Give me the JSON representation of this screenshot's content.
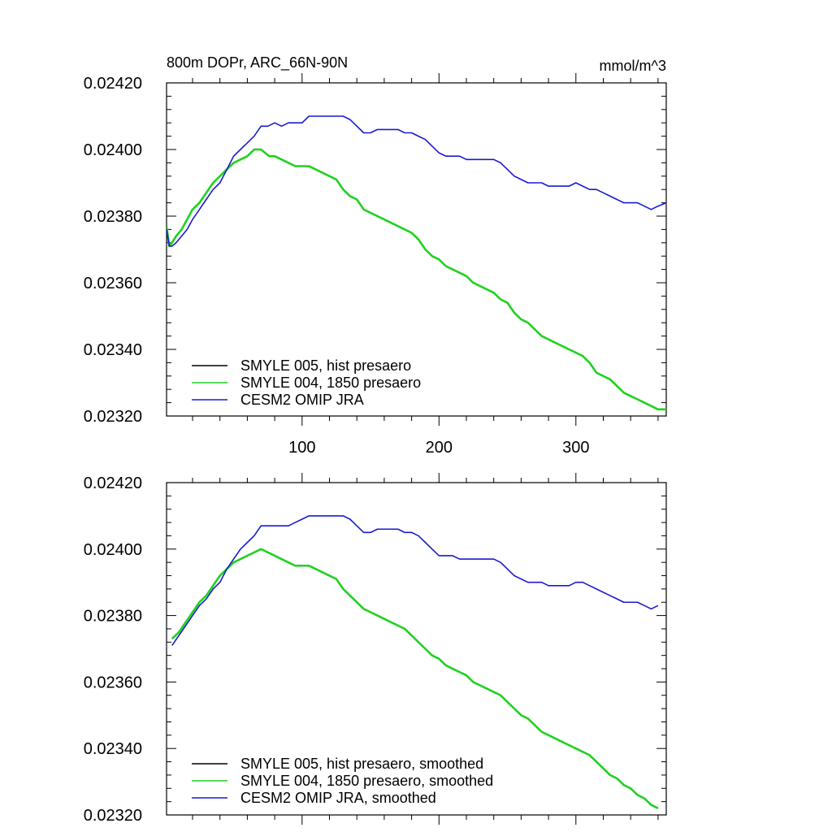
{
  "figure": {
    "title_left": "800m DOPr, ARC_66N-90N",
    "title_right": "mmol/m^3"
  },
  "colors": {
    "smyle005": "#000000",
    "smyle004": "#1fd21f",
    "omip": "#1a1ad2",
    "axis": "#000000"
  },
  "chart_data": [
    {
      "type": "line",
      "title": "800m DOPr, ARC_66N-90N",
      "units": "mmol/m^3",
      "xlim": [
        1,
        366
      ],
      "ylim": [
        0.0232,
        0.0242
      ],
      "x_ticks": [
        100,
        200,
        300
      ],
      "x_tick_labels": [
        "100",
        "200",
        "300"
      ],
      "y_ticks": [
        0.0232,
        0.0234,
        0.0236,
        0.0238,
        0.024,
        0.0242
      ],
      "y_tick_labels": [
        "0.02320",
        "0.02340",
        "0.02360",
        "0.02380",
        "0.02400",
        "0.02420"
      ],
      "legend_position": "bottom-left",
      "series": [
        {
          "name": "SMYLE 005, hist presaero",
          "color_key": "smyle004",
          "x": [
            1,
            3,
            5,
            8,
            12,
            16,
            20,
            25,
            30,
            35,
            40,
            45,
            50,
            55,
            60,
            65,
            70,
            73,
            76,
            80,
            85,
            90,
            95,
            100,
            105,
            110,
            115,
            120,
            125,
            130,
            135,
            140,
            145,
            150,
            155,
            160,
            165,
            170,
            175,
            180,
            185,
            190,
            195,
            200,
            205,
            210,
            215,
            220,
            225,
            230,
            235,
            240,
            245,
            250,
            255,
            260,
            265,
            270,
            275,
            280,
            285,
            290,
            295,
            300,
            305,
            310,
            315,
            320,
            325,
            330,
            335,
            340,
            345,
            350,
            355,
            360,
            366
          ],
          "values": [
            0.02377,
            0.02371,
            0.02372,
            0.02374,
            0.02376,
            0.02379,
            0.02382,
            0.02384,
            0.02387,
            0.0239,
            0.02392,
            0.02394,
            0.02396,
            0.02397,
            0.02398,
            0.024,
            0.024,
            0.02399,
            0.02398,
            0.02398,
            0.02397,
            0.02396,
            0.02395,
            0.02395,
            0.02395,
            0.02394,
            0.02393,
            0.02392,
            0.02391,
            0.02388,
            0.02386,
            0.02385,
            0.02382,
            0.02381,
            0.0238,
            0.02379,
            0.02378,
            0.02377,
            0.02376,
            0.02375,
            0.02373,
            0.0237,
            0.02368,
            0.02367,
            0.02365,
            0.02364,
            0.02363,
            0.02362,
            0.0236,
            0.02359,
            0.02358,
            0.02357,
            0.02355,
            0.02354,
            0.02351,
            0.02349,
            0.02348,
            0.02346,
            0.02344,
            0.02343,
            0.02342,
            0.02341,
            0.0234,
            0.02339,
            0.02338,
            0.02336,
            0.02333,
            0.02332,
            0.02331,
            0.02329,
            0.02327,
            0.02326,
            0.02325,
            0.02324,
            0.02323,
            0.02322,
            0.02322
          ]
        },
        {
          "name": "SMYLE 004, 1850 presaero",
          "color_key": "smyle004",
          "x": [
            1,
            3,
            5,
            8,
            12,
            16,
            20,
            25,
            30,
            35,
            40,
            45,
            50,
            55,
            60,
            65,
            70,
            73,
            76,
            80,
            85,
            90,
            95,
            100,
            105,
            110,
            115,
            120,
            125,
            130,
            135,
            140,
            145,
            150,
            155,
            160,
            165,
            170,
            175,
            180,
            185,
            190,
            195,
            200,
            205,
            210,
            215,
            220,
            225,
            230,
            235,
            240,
            245,
            250,
            255,
            260,
            265,
            270,
            275,
            280,
            285,
            290,
            295,
            300,
            305,
            310,
            315,
            320,
            325,
            330,
            335,
            340,
            345,
            350,
            355,
            360,
            366
          ],
          "values": [
            0.02377,
            0.02371,
            0.02372,
            0.02374,
            0.02376,
            0.02379,
            0.02382,
            0.02384,
            0.02387,
            0.0239,
            0.02392,
            0.02394,
            0.02396,
            0.02397,
            0.02398,
            0.024,
            0.024,
            0.02399,
            0.02398,
            0.02398,
            0.02397,
            0.02396,
            0.02395,
            0.02395,
            0.02395,
            0.02394,
            0.02393,
            0.02392,
            0.02391,
            0.02388,
            0.02386,
            0.02385,
            0.02382,
            0.02381,
            0.0238,
            0.02379,
            0.02378,
            0.02377,
            0.02376,
            0.02375,
            0.02373,
            0.0237,
            0.02368,
            0.02367,
            0.02365,
            0.02364,
            0.02363,
            0.02362,
            0.0236,
            0.02359,
            0.02358,
            0.02357,
            0.02355,
            0.02354,
            0.02351,
            0.02349,
            0.02348,
            0.02346,
            0.02344,
            0.02343,
            0.02342,
            0.02341,
            0.0234,
            0.02339,
            0.02338,
            0.02336,
            0.02333,
            0.02332,
            0.02331,
            0.02329,
            0.02327,
            0.02326,
            0.02325,
            0.02324,
            0.02323,
            0.02322,
            0.02322
          ]
        },
        {
          "name": "CESM2 OMIP JRA",
          "color_key": "omip",
          "x": [
            1,
            3,
            5,
            8,
            12,
            16,
            20,
            25,
            30,
            35,
            40,
            45,
            50,
            55,
            60,
            65,
            70,
            75,
            80,
            85,
            90,
            95,
            100,
            105,
            110,
            115,
            120,
            125,
            130,
            135,
            140,
            145,
            150,
            155,
            160,
            165,
            170,
            175,
            180,
            185,
            190,
            195,
            200,
            205,
            210,
            215,
            220,
            225,
            230,
            235,
            240,
            245,
            250,
            255,
            260,
            265,
            270,
            275,
            280,
            285,
            290,
            295,
            300,
            305,
            310,
            315,
            320,
            325,
            330,
            335,
            340,
            345,
            350,
            355,
            360,
            366
          ],
          "values": [
            0.02376,
            0.02371,
            0.02371,
            0.02372,
            0.02374,
            0.02376,
            0.02379,
            0.02382,
            0.02385,
            0.02388,
            0.0239,
            0.02394,
            0.02398,
            0.024,
            0.02402,
            0.02404,
            0.02407,
            0.02407,
            0.02408,
            0.02407,
            0.02408,
            0.02408,
            0.02408,
            0.0241,
            0.0241,
            0.0241,
            0.0241,
            0.0241,
            0.0241,
            0.02409,
            0.02407,
            0.02405,
            0.02405,
            0.02406,
            0.02406,
            0.02406,
            0.02406,
            0.02405,
            0.02405,
            0.02404,
            0.02403,
            0.02401,
            0.02399,
            0.02398,
            0.02398,
            0.02398,
            0.02397,
            0.02397,
            0.02397,
            0.02397,
            0.02397,
            0.02396,
            0.02394,
            0.02392,
            0.02391,
            0.0239,
            0.0239,
            0.0239,
            0.02389,
            0.02389,
            0.02389,
            0.02389,
            0.0239,
            0.02389,
            0.02388,
            0.02388,
            0.02387,
            0.02386,
            0.02385,
            0.02384,
            0.02384,
            0.02384,
            0.02383,
            0.02382,
            0.02383,
            0.02384
          ]
        }
      ]
    },
    {
      "type": "line",
      "xlim": [
        1,
        366
      ],
      "ylim": [
        0.0232,
        0.0242
      ],
      "x_ticks": [
        100,
        200,
        300
      ],
      "x_tick_labels": [],
      "y_ticks": [
        0.0232,
        0.0234,
        0.0236,
        0.0238,
        0.024,
        0.0242
      ],
      "y_tick_labels": [
        "0.02320",
        "0.02340",
        "0.02360",
        "0.02380",
        "0.02400",
        "0.02420"
      ],
      "legend_position": "bottom-left",
      "series": [
        {
          "name": "SMYLE 005, hist presaero, smoothed",
          "color_key": "smyle004",
          "x": [
            5,
            10,
            15,
            20,
            25,
            30,
            35,
            40,
            45,
            50,
            55,
            60,
            65,
            70,
            75,
            80,
            85,
            90,
            95,
            100,
            105,
            110,
            115,
            120,
            125,
            130,
            135,
            140,
            145,
            150,
            155,
            160,
            165,
            170,
            175,
            180,
            185,
            190,
            195,
            200,
            205,
            210,
            215,
            220,
            225,
            230,
            235,
            240,
            245,
            250,
            255,
            260,
            265,
            270,
            275,
            280,
            285,
            290,
            295,
            300,
            305,
            310,
            315,
            320,
            325,
            330,
            335,
            340,
            345,
            350,
            355,
            360
          ],
          "values": [
            0.02373,
            0.02375,
            0.02378,
            0.02381,
            0.02384,
            0.02386,
            0.02389,
            0.02392,
            0.02394,
            0.02396,
            0.02397,
            0.02398,
            0.02399,
            0.024,
            0.02399,
            0.02398,
            0.02397,
            0.02396,
            0.02395,
            0.02395,
            0.02395,
            0.02394,
            0.02393,
            0.02392,
            0.02391,
            0.02388,
            0.02386,
            0.02384,
            0.02382,
            0.02381,
            0.0238,
            0.02379,
            0.02378,
            0.02377,
            0.02376,
            0.02374,
            0.02372,
            0.0237,
            0.02368,
            0.02367,
            0.02365,
            0.02364,
            0.02363,
            0.02362,
            0.0236,
            0.02359,
            0.02358,
            0.02357,
            0.02356,
            0.02354,
            0.02352,
            0.0235,
            0.02349,
            0.02347,
            0.02345,
            0.02344,
            0.02343,
            0.02342,
            0.02341,
            0.0234,
            0.02339,
            0.02338,
            0.02336,
            0.02334,
            0.02332,
            0.02331,
            0.02329,
            0.02328,
            0.02326,
            0.02325,
            0.02323,
            0.02322
          ]
        },
        {
          "name": "SMYLE 004, 1850 presaero, smoothed",
          "color_key": "smyle004",
          "x": [
            5,
            10,
            15,
            20,
            25,
            30,
            35,
            40,
            45,
            50,
            55,
            60,
            65,
            70,
            75,
            80,
            85,
            90,
            95,
            100,
            105,
            110,
            115,
            120,
            125,
            130,
            135,
            140,
            145,
            150,
            155,
            160,
            165,
            170,
            175,
            180,
            185,
            190,
            195,
            200,
            205,
            210,
            215,
            220,
            225,
            230,
            235,
            240,
            245,
            250,
            255,
            260,
            265,
            270,
            275,
            280,
            285,
            290,
            295,
            300,
            305,
            310,
            315,
            320,
            325,
            330,
            335,
            340,
            345,
            350,
            355,
            360
          ],
          "values": [
            0.02373,
            0.02375,
            0.02378,
            0.02381,
            0.02384,
            0.02386,
            0.02389,
            0.02392,
            0.02394,
            0.02396,
            0.02397,
            0.02398,
            0.02399,
            0.024,
            0.02399,
            0.02398,
            0.02397,
            0.02396,
            0.02395,
            0.02395,
            0.02395,
            0.02394,
            0.02393,
            0.02392,
            0.02391,
            0.02388,
            0.02386,
            0.02384,
            0.02382,
            0.02381,
            0.0238,
            0.02379,
            0.02378,
            0.02377,
            0.02376,
            0.02374,
            0.02372,
            0.0237,
            0.02368,
            0.02367,
            0.02365,
            0.02364,
            0.02363,
            0.02362,
            0.0236,
            0.02359,
            0.02358,
            0.02357,
            0.02356,
            0.02354,
            0.02352,
            0.0235,
            0.02349,
            0.02347,
            0.02345,
            0.02344,
            0.02343,
            0.02342,
            0.02341,
            0.0234,
            0.02339,
            0.02338,
            0.02336,
            0.02334,
            0.02332,
            0.02331,
            0.02329,
            0.02328,
            0.02326,
            0.02325,
            0.02323,
            0.02322
          ]
        },
        {
          "name": "CESM2 OMIP JRA, smoothed",
          "color_key": "omip",
          "x": [
            5,
            10,
            15,
            20,
            25,
            30,
            35,
            40,
            45,
            50,
            55,
            60,
            65,
            70,
            75,
            80,
            85,
            90,
            95,
            100,
            105,
            110,
            115,
            120,
            125,
            130,
            135,
            140,
            145,
            150,
            155,
            160,
            165,
            170,
            175,
            180,
            185,
            190,
            195,
            200,
            205,
            210,
            215,
            220,
            225,
            230,
            235,
            240,
            245,
            250,
            255,
            260,
            265,
            270,
            275,
            280,
            285,
            290,
            295,
            300,
            305,
            310,
            315,
            320,
            325,
            330,
            335,
            340,
            345,
            350,
            355,
            360
          ],
          "values": [
            0.02371,
            0.02374,
            0.02377,
            0.0238,
            0.02383,
            0.02385,
            0.02388,
            0.0239,
            0.02394,
            0.02397,
            0.024,
            0.02402,
            0.02404,
            0.02407,
            0.02407,
            0.02407,
            0.02407,
            0.02407,
            0.02408,
            0.02409,
            0.0241,
            0.0241,
            0.0241,
            0.0241,
            0.0241,
            0.0241,
            0.02409,
            0.02407,
            0.02405,
            0.02405,
            0.02406,
            0.02406,
            0.02406,
            0.02406,
            0.02405,
            0.02405,
            0.02404,
            0.02402,
            0.024,
            0.02398,
            0.02398,
            0.02398,
            0.02397,
            0.02397,
            0.02397,
            0.02397,
            0.02397,
            0.02397,
            0.02396,
            0.02394,
            0.02392,
            0.02391,
            0.0239,
            0.0239,
            0.0239,
            0.02389,
            0.02389,
            0.02389,
            0.02389,
            0.0239,
            0.0239,
            0.02389,
            0.02388,
            0.02387,
            0.02386,
            0.02385,
            0.02384,
            0.02384,
            0.02384,
            0.02383,
            0.02382,
            0.02383
          ]
        }
      ]
    }
  ]
}
